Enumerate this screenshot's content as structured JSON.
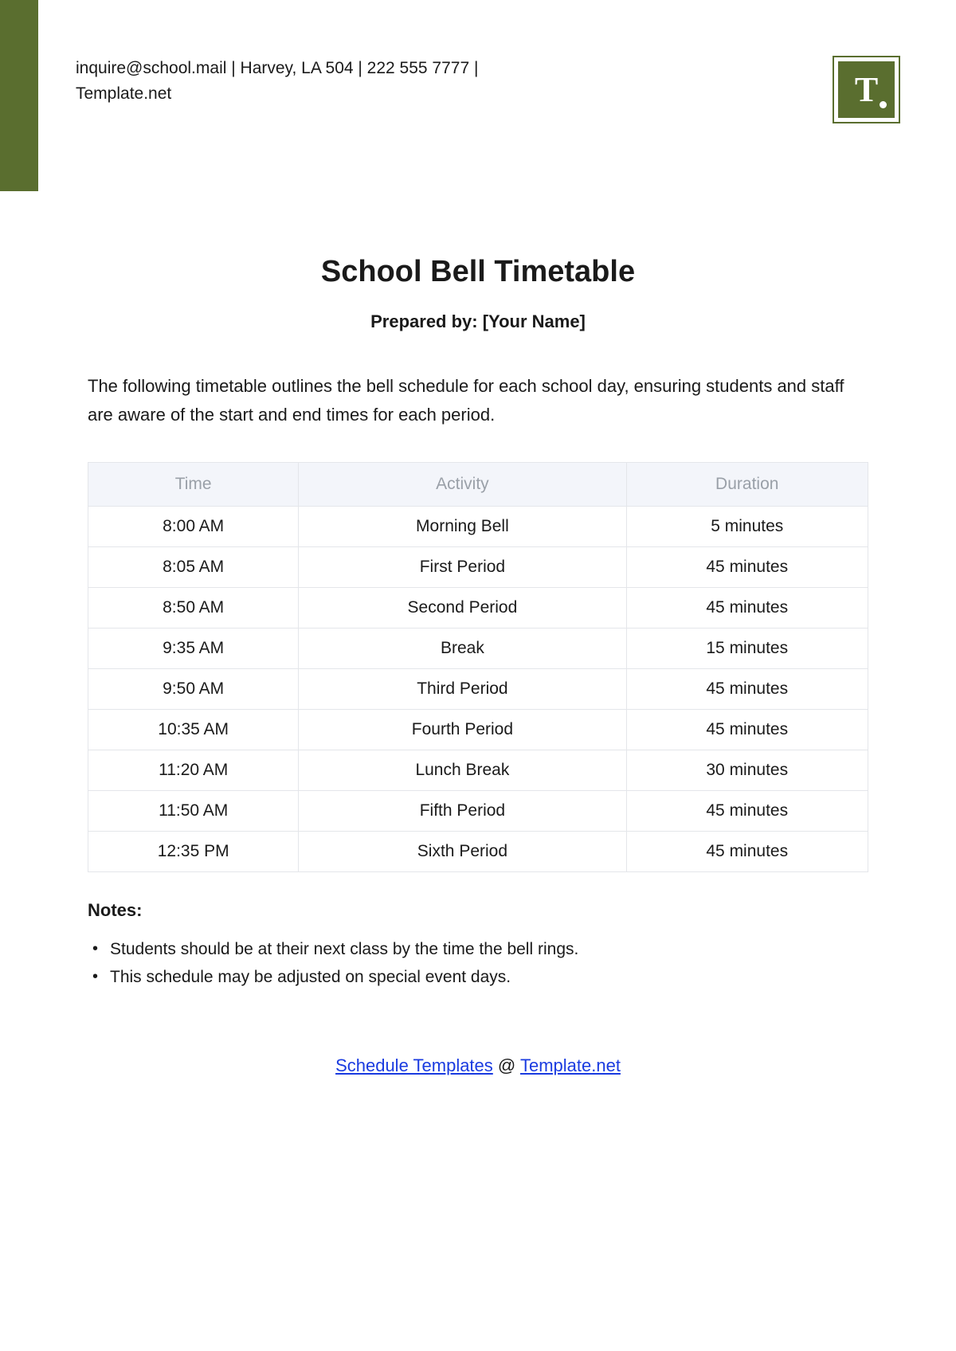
{
  "colors": {
    "accent": "#5a6e2f",
    "table_header_bg": "#f3f5fa",
    "table_header_text": "#9aa0a8",
    "table_border": "#e4e6ea",
    "link": "#1a3be0",
    "text": "#1a1a1a"
  },
  "header": {
    "contact_line1": "inquire@school.mail | Harvey, LA 504 | 222 555 7777 |",
    "contact_line2": "Template.net",
    "logo_letter": "T"
  },
  "title": "School Bell Timetable",
  "subtitle": "Prepared by: [Your Name]",
  "intro": "The following timetable outlines the bell schedule for each school day, ensuring students and staff are aware of the start and end times for each period.",
  "table": {
    "columns": [
      "Time",
      "Activity",
      "Duration"
    ],
    "column_widths": [
      "27%",
      "42%",
      "31%"
    ],
    "rows": [
      [
        "8:00 AM",
        "Morning Bell",
        "5 minutes"
      ],
      [
        "8:05 AM",
        "First Period",
        "45 minutes"
      ],
      [
        "8:50 AM",
        "Second Period",
        "45 minutes"
      ],
      [
        "9:35 AM",
        "Break",
        "15 minutes"
      ],
      [
        "9:50 AM",
        "Third Period",
        "45 minutes"
      ],
      [
        "10:35 AM",
        "Fourth Period",
        "45 minutes"
      ],
      [
        "11:20 AM",
        "Lunch Break",
        "30 minutes"
      ],
      [
        "11:50 AM",
        "Fifth Period",
        "45 minutes"
      ],
      [
        "12:35 PM",
        "Sixth Period",
        "45 minutes"
      ]
    ]
  },
  "notes_heading": "Notes:",
  "notes": [
    "Students should be at their next class by the time the bell rings.",
    "This schedule may be adjusted on special event days."
  ],
  "footer": {
    "link1_text": "Schedule Templates",
    "middle": " @ ",
    "link2_text": "Template.net"
  }
}
